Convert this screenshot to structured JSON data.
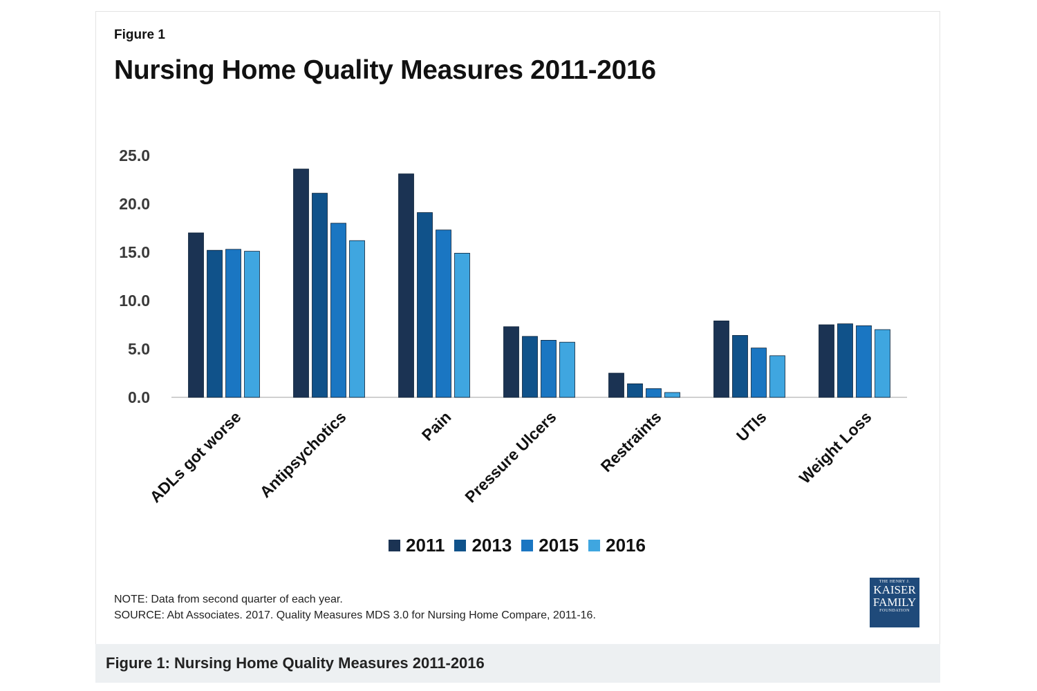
{
  "figure_label": "Figure 1",
  "caption": "Figure 1: Nursing Home Quality Measures 2011-2016",
  "notes": {
    "note": "NOTE: Data from second quarter of each year.",
    "source": "SOURCE: Abt Associates. 2017. Quality Measures MDS 3.0 for Nursing Home Compare, 2011-16."
  },
  "logo": {
    "top": "THE HENRY J.",
    "line1": "KAISER",
    "line2": "FAMILY",
    "bottom": "FOUNDATION"
  },
  "colors": {
    "2011": "#1b3353",
    "2013": "#10528a",
    "2015": "#1a76c2",
    "2016": "#3fa6e0",
    "axis": "#d0d0d0",
    "logo_bg": "#1f4a7a"
  },
  "chart_data": {
    "type": "bar",
    "title": "Nursing Home Quality Measures 2011-2016",
    "xlabel": "",
    "ylabel": "",
    "ylim": [
      0,
      25
    ],
    "yticks": [
      0,
      5,
      10,
      15,
      20,
      25
    ],
    "ytick_labels": [
      "0.0",
      "5.0",
      "10.0",
      "15.0",
      "20.0",
      "25.0"
    ],
    "grid": false,
    "legend_position": "bottom",
    "categories": [
      "ADLs got worse",
      "Antipsychotics",
      "Pain",
      "Pressure Ulcers",
      "Restraints",
      "UTIs",
      "Weight Loss"
    ],
    "series": [
      {
        "name": "2011",
        "values": [
          17.0,
          23.6,
          23.1,
          7.3,
          2.5,
          7.9,
          7.5
        ]
      },
      {
        "name": "2013",
        "values": [
          15.2,
          21.1,
          19.1,
          6.3,
          1.4,
          6.4,
          7.6
        ]
      },
      {
        "name": "2015",
        "values": [
          15.3,
          18.0,
          17.3,
          5.9,
          0.9,
          5.1,
          7.4
        ]
      },
      {
        "name": "2016",
        "values": [
          15.1,
          16.2,
          14.9,
          5.7,
          0.5,
          4.3,
          7.0
        ]
      }
    ]
  }
}
